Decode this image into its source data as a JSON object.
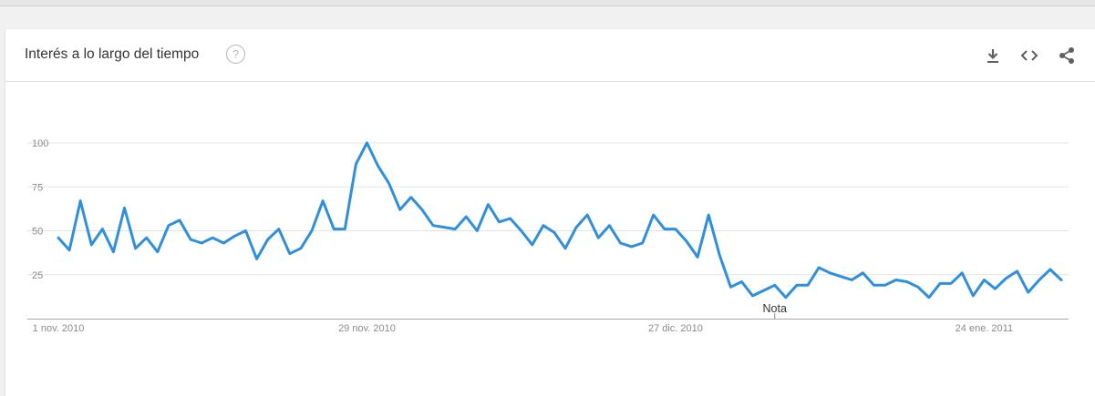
{
  "header": {
    "title": "Interés a lo largo del tiempo",
    "help_glyph": "?",
    "icons": [
      "question-circle-icon",
      "download-icon",
      "embed-code-icon",
      "share-icon"
    ]
  },
  "chart_data": {
    "type": "line",
    "title": "",
    "xlabel": "",
    "ylabel": "",
    "ylim": [
      0,
      100
    ],
    "yticks": [
      25,
      50,
      75,
      100
    ],
    "grid": true,
    "line_color": "#2f8fdc",
    "x_tick_labels": [
      "1 nov. 2010",
      "29 nov. 2010",
      "27 dic. 2010",
      "24 ene. 2011"
    ],
    "annotation": {
      "label": "Nota",
      "date": "2011-01-05"
    },
    "x_start": "2010-11-01",
    "x_step_days": 1,
    "values": [
      46,
      39,
      67,
      42,
      51,
      38,
      63,
      40,
      46,
      38,
      53,
      56,
      45,
      43,
      46,
      43,
      47,
      50,
      34,
      45,
      51,
      37,
      40,
      50,
      67,
      51,
      51,
      88,
      100,
      87,
      77,
      62,
      69,
      62,
      53,
      52,
      51,
      58,
      50,
      65,
      55,
      57,
      50,
      42,
      53,
      49,
      40,
      52,
      59,
      46,
      53,
      43,
      41,
      43,
      59,
      51,
      51,
      44,
      35,
      59,
      36,
      18,
      21,
      13,
      16,
      19,
      12,
      19,
      19,
      29,
      26,
      24,
      22,
      26,
      19,
      19,
      22,
      21,
      18,
      12,
      20,
      20,
      26,
      13,
      22,
      17,
      23,
      27,
      15,
      22,
      28,
      22
    ]
  }
}
